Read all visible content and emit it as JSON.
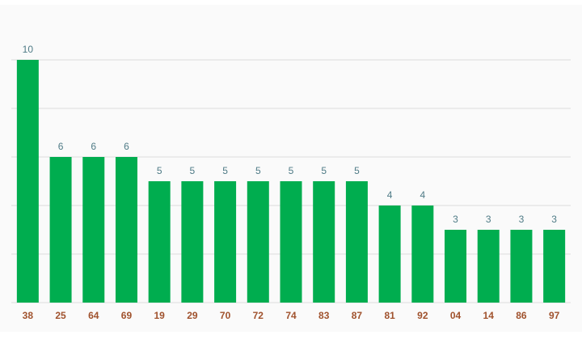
{
  "chart_data": {
    "type": "bar",
    "categories": [
      "38",
      "25",
      "64",
      "69",
      "19",
      "29",
      "70",
      "72",
      "74",
      "83",
      "87",
      "81",
      "92",
      "04",
      "14",
      "86",
      "97"
    ],
    "values": [
      10,
      6,
      6,
      6,
      5,
      5,
      5,
      5,
      5,
      5,
      5,
      4,
      4,
      3,
      3,
      3,
      3
    ],
    "color": "#00ad4f",
    "ylim": [
      0,
      10
    ],
    "yticks": [
      0,
      2,
      4,
      6,
      8,
      10
    ],
    "grid": true
  }
}
